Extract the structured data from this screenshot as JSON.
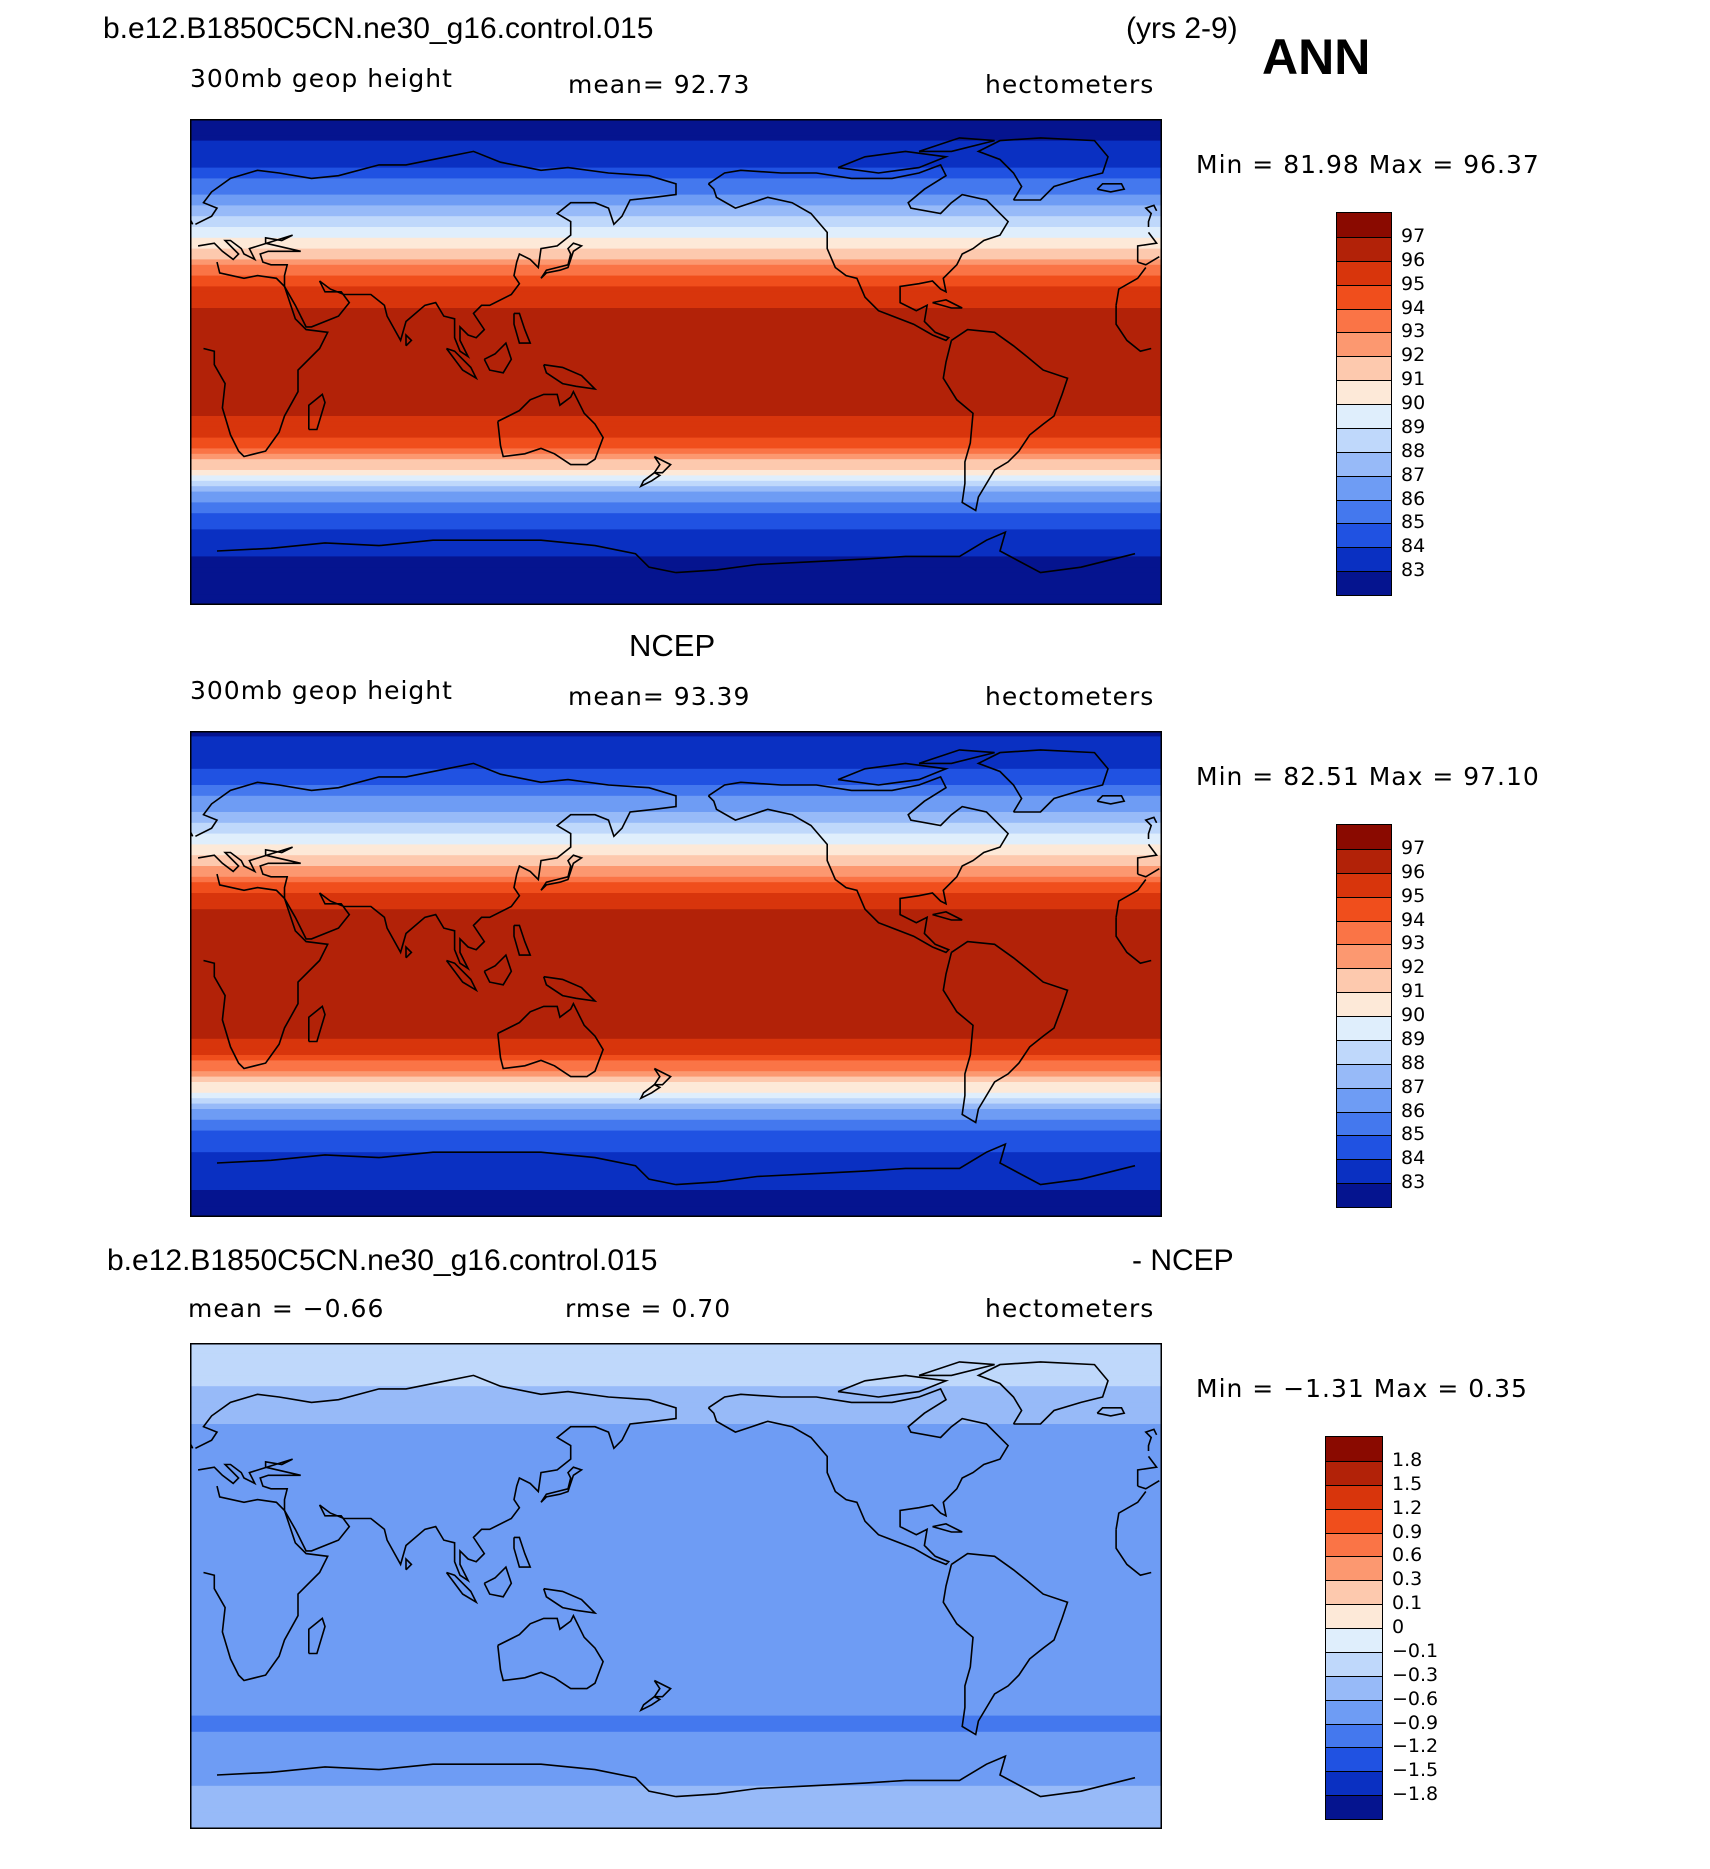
{
  "header": {
    "case_title": "b.e12.B1850C5CN.ne30_g16.control.015",
    "years": "(yrs 2-9)",
    "season": "ANN"
  },
  "panels": [
    {
      "id": "model",
      "variable": "300mb geop height",
      "stat": "mean=   92.73",
      "units": "hectometers",
      "min_max": "Min =   81.98  Max =   96.37"
    },
    {
      "id": "obs",
      "title": "NCEP",
      "variable": "300mb geop height",
      "stat": "mean=   93.39",
      "units": "hectometers",
      "min_max": "Min =   82.51  Max =   97.10"
    },
    {
      "id": "diff",
      "title_left": "b.e12.B1850C5CN.ne30_g16.control.015",
      "title_right": "- NCEP",
      "stat_mean": "mean =   −0.66",
      "stat_rmse": "rmse =    0.70",
      "units": "hectometers",
      "min_max": "Min =   −1.31  Max =    0.35"
    }
  ],
  "chart_data": [
    {
      "type": "heatmap",
      "title": "b.e12.B1850C5CN.ne30_g16.control.015 (yrs 2-9) ANN",
      "subtitle": "300mb geop height",
      "units": "hectometers",
      "mean": 92.73,
      "min": 81.98,
      "max": 96.37,
      "colorbar_levels": [
        "97",
        "96",
        "95",
        "94",
        "93",
        "92",
        "91",
        "90",
        "89",
        "88",
        "87",
        "86",
        "85",
        "84",
        "83"
      ],
      "zonal_profile_lat": [
        90,
        75,
        60,
        50,
        40,
        30,
        20,
        0,
        -20,
        -30,
        -40,
        -50,
        -60,
        -75,
        -90
      ],
      "zonal_profile_value": [
        82.3,
        83.5,
        86.5,
        88.8,
        91.5,
        94.8,
        96.1,
        96.3,
        96.1,
        94.6,
        90.8,
        86.5,
        84.2,
        82.8,
        82.2
      ]
    },
    {
      "type": "heatmap",
      "title": "NCEP",
      "subtitle": "300mb geop height",
      "units": "hectometers",
      "mean": 93.39,
      "min": 82.51,
      "max": 97.1,
      "colorbar_levels": [
        "97",
        "96",
        "95",
        "94",
        "93",
        "92",
        "91",
        "90",
        "89",
        "88",
        "87",
        "86",
        "85",
        "84",
        "83"
      ],
      "zonal_profile_lat": [
        90,
        75,
        60,
        50,
        40,
        30,
        20,
        0,
        -20,
        -30,
        -40,
        -50,
        -60,
        -75,
        -90
      ],
      "zonal_profile_value": [
        82.8,
        84.0,
        87.0,
        89.3,
        92.0,
        95.2,
        96.5,
        96.8,
        96.5,
        95.0,
        91.3,
        87.0,
        84.6,
        83.2,
        82.6
      ]
    },
    {
      "type": "heatmap",
      "title": "b.e12.B1850C5CN.ne30_g16.control.015 - NCEP",
      "units": "hectometers",
      "mean": -0.66,
      "rmse": 0.7,
      "min": -1.31,
      "max": 0.35,
      "colorbar_levels": [
        "1.8",
        "1.5",
        "1.2",
        "0.9",
        "0.6",
        "0.3",
        "0.1",
        "0",
        "−0.1",
        "−0.3",
        "−0.6",
        "−0.9",
        "−1.2",
        "−1.5",
        "−1.8"
      ],
      "zonal_profile_lat": [
        90,
        75,
        60,
        40,
        20,
        0,
        -20,
        -40,
        -50,
        -60,
        -75,
        -90
      ],
      "zonal_profile_value": [
        -0.1,
        -0.3,
        -0.6,
        -0.65,
        -0.75,
        -0.75,
        -0.7,
        -0.75,
        -0.95,
        -0.8,
        -0.6,
        -0.5
      ]
    }
  ],
  "colors": {
    "model_palette": [
      "#8a0a00",
      "#b22208",
      "#d8350c",
      "#f04e1c",
      "#fa7446",
      "#fc9870",
      "#fdc9ae",
      "#fde9d8",
      "#dfeefc",
      "#bfd8fb",
      "#97baf8",
      "#6e9cf4",
      "#4478ee",
      "#2052e2",
      "#0a30c2",
      "#05148f"
    ],
    "diff_palette": [
      "#8a0a00",
      "#b22208",
      "#d8350c",
      "#f04e1c",
      "#fa7446",
      "#fc9870",
      "#fdc9ae",
      "#fde9d8",
      "#dfeefc",
      "#bfd8fb",
      "#97baf8",
      "#6e9cf4",
      "#4478ee",
      "#2052e2",
      "#0a30c2",
      "#05148f"
    ]
  }
}
